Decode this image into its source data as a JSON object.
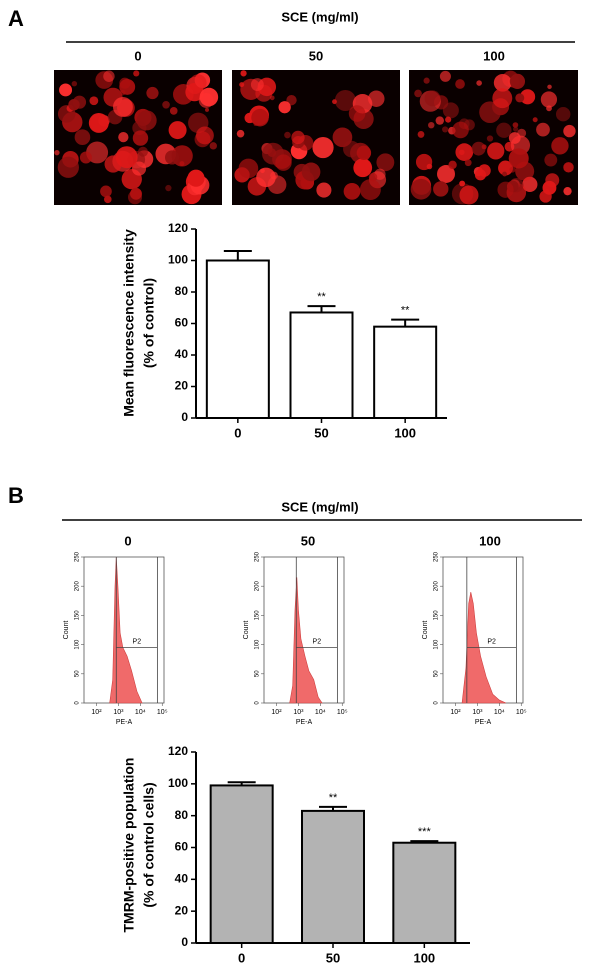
{
  "panel_a": {
    "label": "A",
    "treatment": "SCE (mg/ml)",
    "doses": [
      "0",
      "50",
      "100"
    ]
  },
  "panel_b": {
    "label": "B",
    "treatment": "SCE (mg/ml)",
    "doses": [
      "0",
      "50",
      "100"
    ],
    "flow": {
      "type": "histogram",
      "ylabel": "Count",
      "xlabel": "PE-A",
      "gate_label": "P2",
      "color": "#f06a6a",
      "xlog": true,
      "xlim": [
        27,
        120000
      ],
      "ylim": [
        0,
        250
      ],
      "xticks": [
        {
          "value": 100,
          "label": "10²"
        },
        {
          "value": 1000,
          "label": "10³"
        },
        {
          "value": 10000,
          "label": "10⁴"
        },
        {
          "value": 100000,
          "label": "10⁵"
        }
      ],
      "yticks": [
        0,
        50,
        100,
        150,
        200,
        250
      ],
      "histograms": [
        {
          "x": [
            400,
            550,
            700,
            800,
            950,
            1200,
            1600,
            2500,
            4000,
            7000,
            12000
          ],
          "counts": [
            0,
            40,
            200,
            250,
            200,
            120,
            95,
            80,
            55,
            20,
            0
          ],
          "gate_x": [
            800,
            60000
          ],
          "gate_count": 95
        },
        {
          "x": [
            400,
            550,
            700,
            850,
            1000,
            1300,
            2000,
            3000,
            5000,
            8000,
            12000
          ],
          "counts": [
            0,
            30,
            160,
            215,
            160,
            110,
            80,
            55,
            40,
            10,
            0
          ],
          "gate_x": [
            800,
            60000
          ],
          "gate_count": 95
        },
        {
          "x": [
            200,
            300,
            400,
            500,
            650,
            900,
            1400,
            2500,
            5000,
            10000,
            20000
          ],
          "counts": [
            0,
            60,
            170,
            190,
            170,
            120,
            80,
            45,
            15,
            5,
            0
          ],
          "gate_x": [
            330,
            60000
          ],
          "gate_count": 95
        }
      ]
    }
  },
  "chart_data": [
    {
      "type": "bar",
      "ylabel": [
        "Mean fluorescence intensity",
        "(% of control)"
      ],
      "categories": [
        "0",
        "50",
        "100"
      ],
      "values": [
        100,
        67,
        58
      ],
      "errors": [
        6,
        4,
        4.5
      ],
      "annotations": [
        null,
        "**",
        "**"
      ],
      "color": "#ffffff",
      "ylim": [
        0,
        120
      ],
      "yticks": [
        0,
        20,
        40,
        60,
        80,
        100,
        120
      ]
    },
    {
      "type": "bar",
      "ylabel": [
        "TMRM-positive population",
        "(% of control cells)"
      ],
      "categories": [
        "0",
        "50",
        "100"
      ],
      "values": [
        99,
        83,
        63
      ],
      "errors": [
        2,
        2.5,
        1
      ],
      "annotations": [
        null,
        "**",
        "***"
      ],
      "color": "#b3b3b3",
      "ylim": [
        0,
        120
      ],
      "yticks": [
        0,
        20,
        40,
        60,
        80,
        100,
        120
      ]
    }
  ]
}
